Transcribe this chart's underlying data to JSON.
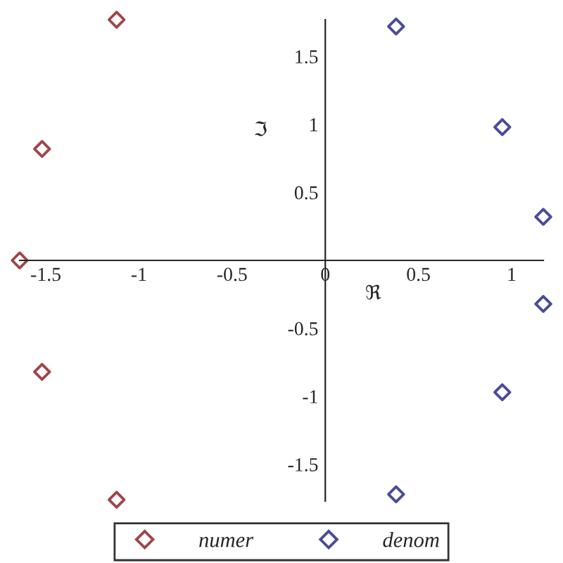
{
  "chart_data": {
    "type": "scatter",
    "xlabel": "ℜ",
    "ylabel": "ℑ",
    "series": [
      {
        "name": "numer",
        "color": "#a0464b",
        "x": [
          -1.64,
          -1.52,
          -1.12,
          -1.52,
          -1.12
        ],
        "values": [
          0,
          0.82,
          1.77,
          -0.82,
          -1.76
        ]
      },
      {
        "name": "denom",
        "color": "#4b4b9b",
        "x": [
          0.38,
          0.95,
          1.17,
          1.17,
          0.95,
          0.38
        ],
        "values": [
          1.72,
          0.98,
          0.32,
          -0.32,
          -0.97,
          -1.72
        ]
      }
    ],
    "xlim": [
      -1.64,
      1.17
    ],
    "ylim": [
      -1.77,
      1.77
    ],
    "xticks": [
      -1.5,
      -1,
      -0.5,
      0,
      0.5,
      1
    ],
    "yticks": [
      -1.5,
      -1,
      -0.5,
      0.5,
      1,
      1.5
    ],
    "marker": "diamond",
    "legend": "bottom"
  }
}
